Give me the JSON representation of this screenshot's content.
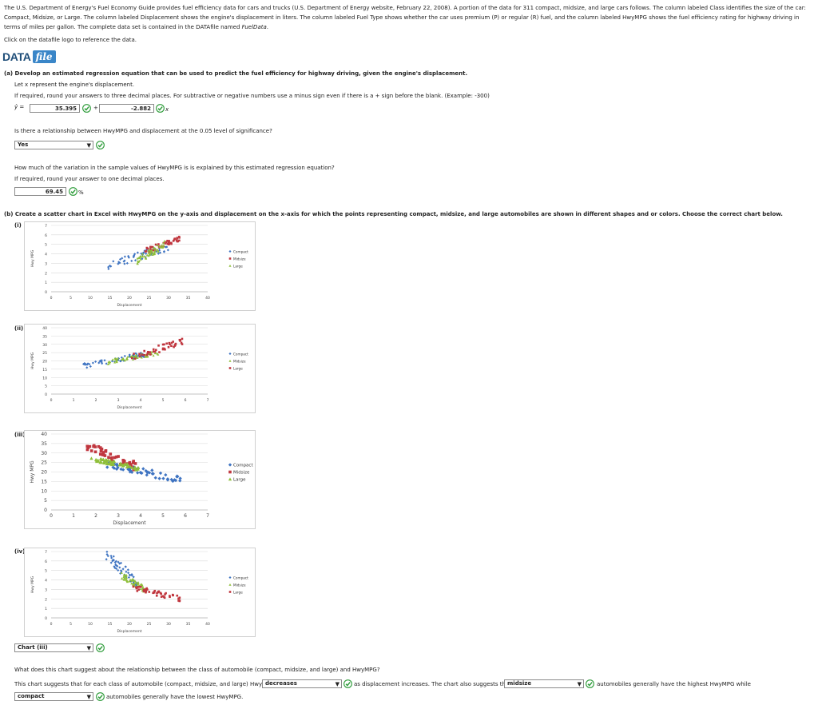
{
  "intro": {
    "text": "The U.S. Department of Energy's Fuel Economy Guide provides fuel efficiency data for cars and trucks (U.S. Department of Energy website, February 22, 2008). A portion of the data for 311 compact, midsize, and large cars follows. The column labeled Class identifies the size of the car: Compact, Midsize, or Large. The column labeled Displacement shows the engine's displacement in liters. The column labeled Fuel Type shows whether the car uses premium (P) or regular (R) fuel, and the column labeled HwyMPG shows the fuel efficiency rating for highway driving in terms of miles per gallon. The complete data set is contained in the DATAfile named ",
    "file_name": "FuelData",
    "end": ".",
    "click": "Click on the datafile logo to reference the data."
  },
  "logo": {
    "data": "DATA",
    "file": "file"
  },
  "part_a": {
    "heading": "(a) Develop an estimated regression equation that can be used to predict the fuel efficiency for highway driving, given the engine's displacement.",
    "let_x": "Let x represent the engine's displacement.",
    "instructions": "If required, round your answers to three decimal places. For subtractive or negative numbers use a minus sign even if there is a + sign before the blank. (Example: -300)",
    "yhat": "ŷ =",
    "intercept": "35.395",
    "plus": "+",
    "slope": "-2.882",
    "x_suffix": "x",
    "q2": "Is there a relationship between HwyMPG and displacement at the 0.05 level of significance?",
    "q2_answer": "Yes",
    "q3": "How much of the variation in the sample values of HwyMPG is is explained by this estimated regression equation?",
    "q3_instr": "If required, round your answer to one decimal places.",
    "q3_answer": "69.45",
    "percent": "%"
  },
  "part_b": {
    "heading": "(b) Create a scatter chart in Excel with HwyMPG on the y-axis and displacement on the x-axis for which the points representing compact, midsize, and large automobiles are shown in different shapes and or colors. Choose the correct chart below.",
    "labels": [
      "(i)",
      "(ii)",
      "(iii)",
      "(iv)"
    ],
    "choice": "Chart (iii)",
    "followup": "What does this chart suggest about the relationship between the class of automobile (compact, midsize, and large) and HwyMPG?",
    "sentence_pre": "This chart suggests that for each class of automobile (compact, midsize, and large) HwyMPG",
    "dd1": "decreases",
    "sentence_mid": "as displacement increases. The chart also suggests that",
    "dd2": "midsize",
    "sentence_end": "automobiles generally have the highest HwyMPG while",
    "dd3": "compact",
    "sentence_last": "automobiles generally have the lowest HwyMPG."
  },
  "colors": {
    "compact": "#3f74c2",
    "midsize": "#c0373f",
    "large": "#8fbf3a",
    "check": "#2e9c3a"
  },
  "chart_data": [
    {
      "type": "scatter",
      "label": "(i)",
      "ylabel": "Hwy MPG",
      "xlabel": "Displacement",
      "xticks": [
        "0",
        "5",
        "10",
        "15",
        "20",
        "25",
        "30",
        "35",
        "40"
      ],
      "yticks": [
        "0",
        "1",
        "2",
        "3",
        "4",
        "5",
        "6",
        "7"
      ],
      "legend": [
        {
          "name": "Compact",
          "color": "#3f74c2",
          "shape": "diamond"
        },
        {
          "name": "Midsize",
          "color": "#c0373f",
          "shape": "square"
        },
        {
          "name": "Large",
          "color": "#8fbf3a",
          "shape": "triangle"
        }
      ],
      "series": [
        {
          "name": "Compact",
          "color": "#3f74c2",
          "shape": "diamond",
          "cx": [
            14,
            30
          ],
          "cy": [
            2.7,
            4.8
          ]
        },
        {
          "name": "Midsize",
          "color": "#c0373f",
          "shape": "square",
          "cx": [
            24,
            33
          ],
          "cy": [
            4.3,
            5.6
          ]
        },
        {
          "name": "Large",
          "color": "#8fbf3a",
          "shape": "triangle",
          "cx": [
            22,
            29
          ],
          "cy": [
            3.3,
            5.0
          ]
        }
      ]
    },
    {
      "type": "scatter",
      "label": "(ii)",
      "ylabel": "Hwy MPG",
      "xlabel": "Displacement",
      "xticks": [
        "0",
        "1",
        "2",
        "3",
        "4",
        "5",
        "6",
        "7"
      ],
      "yticks": [
        "0",
        "5",
        "10",
        "15",
        "20",
        "25",
        "30",
        "35",
        "40"
      ],
      "legend": [
        {
          "name": "Compact",
          "color": "#3f74c2",
          "shape": "diamond"
        },
        {
          "name": "Midsize",
          "color": "#8fbf3a",
          "shape": "triangle"
        },
        {
          "name": "Large",
          "color": "#c0373f",
          "shape": "square"
        }
      ],
      "series": [
        {
          "name": "Compact",
          "color": "#3f74c2",
          "shape": "diamond",
          "cx": [
            1.4,
            4.2
          ],
          "cy": [
            17,
            24
          ]
        },
        {
          "name": "Midsize",
          "color": "#8fbf3a",
          "shape": "triangle",
          "cx": [
            2.4,
            4.8
          ],
          "cy": [
            19,
            25
          ]
        },
        {
          "name": "Large",
          "color": "#c0373f",
          "shape": "square",
          "cx": [
            3.6,
            5.9
          ],
          "cy": [
            22,
            32
          ]
        }
      ]
    },
    {
      "type": "scatter",
      "label": "(iii)",
      "ylabel": "Hwy MPG",
      "xlabel": "Displacement",
      "xticks": [
        "0",
        "1",
        "2",
        "3",
        "4",
        "5",
        "6",
        "7"
      ],
      "yticks": [
        "0",
        "5",
        "10",
        "15",
        "20",
        "25",
        "30",
        "35",
        "40"
      ],
      "legend": [
        {
          "name": "Compact",
          "color": "#3f74c2",
          "shape": "diamond"
        },
        {
          "name": "Midsize",
          "color": "#c0373f",
          "shape": "square"
        },
        {
          "name": "Large",
          "color": "#8fbf3a",
          "shape": "triangle"
        }
      ],
      "series": [
        {
          "name": "Compact",
          "color": "#3f74c2",
          "shape": "diamond",
          "cx": [
            2.5,
            5.8
          ],
          "cy": [
            16,
            24
          ]
        },
        {
          "name": "Midsize",
          "color": "#c0373f",
          "shape": "square",
          "cx": [
            1.5,
            3.8
          ],
          "cy": [
            23,
            34
          ]
        },
        {
          "name": "Large",
          "color": "#8fbf3a",
          "shape": "triangle",
          "cx": [
            1.8,
            3.9
          ],
          "cy": [
            22,
            27
          ]
        }
      ]
    },
    {
      "type": "scatter",
      "label": "(iv)",
      "ylabel": "Hwy MPG",
      "xlabel": "Displacement",
      "xticks": [
        "0",
        "5",
        "10",
        "15",
        "20",
        "25",
        "30",
        "35",
        "40"
      ],
      "yticks": [
        "0",
        "1",
        "2",
        "3",
        "4",
        "5",
        "6",
        "7"
      ],
      "legend": [
        {
          "name": "Compact",
          "color": "#3f74c2",
          "shape": "diamond"
        },
        {
          "name": "Midsize",
          "color": "#8fbf3a",
          "shape": "triangle"
        },
        {
          "name": "Large",
          "color": "#c0373f",
          "shape": "square"
        }
      ],
      "series": [
        {
          "name": "Compact",
          "color": "#3f74c2",
          "shape": "diamond",
          "cx": [
            14,
            22
          ],
          "cy": [
            3.8,
            6.6
          ]
        },
        {
          "name": "Midsize",
          "color": "#8fbf3a",
          "shape": "triangle",
          "cx": [
            18,
            24
          ],
          "cy": [
            3.0,
            4.5
          ]
        },
        {
          "name": "Large",
          "color": "#c0373f",
          "shape": "square",
          "cx": [
            21,
            33
          ],
          "cy": [
            2.0,
            3.2
          ]
        }
      ]
    }
  ]
}
